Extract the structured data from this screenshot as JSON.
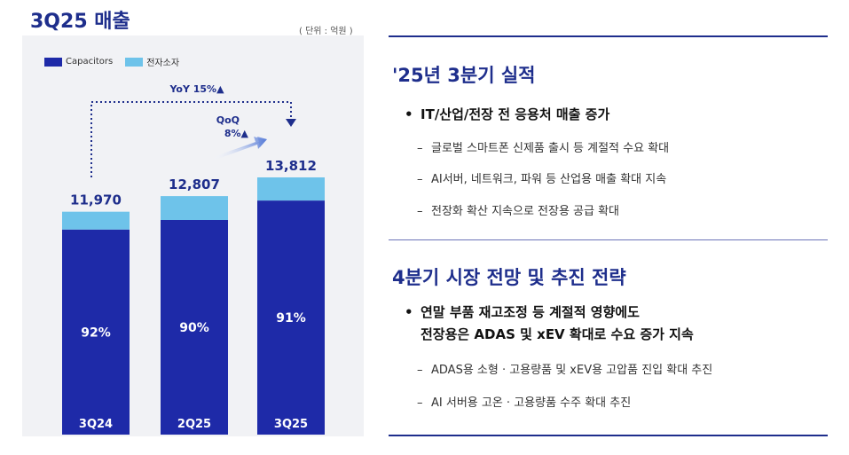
{
  "left": {
    "title": "3Q25 매출",
    "unit": "( 단위 : 억원 )",
    "legend": [
      {
        "label": "Capacitors",
        "color": "#1e2aa8"
      },
      {
        "label": "전자소자",
        "color": "#6ec3ea"
      }
    ],
    "yoy_label": "YoY 15%▲",
    "qoq_label_1": "QoQ",
    "qoq_label_2": "8%▲"
  },
  "chart_data": {
    "type": "bar",
    "stacked": true,
    "title": "3Q25 매출",
    "unit": "억원",
    "categories": [
      "3Q24",
      "2Q25",
      "3Q25"
    ],
    "totals": [
      11970,
      12807,
      13812
    ],
    "total_labels": [
      "11,970",
      "12,807",
      "13,812"
    ],
    "capacitor_share_pct": [
      92,
      90,
      91
    ],
    "share_labels": [
      "92%",
      "90%",
      "91%"
    ],
    "series": [
      {
        "name": "Capacitors",
        "color": "#1e2aa8",
        "values": [
          11012,
          11526,
          12569
        ]
      },
      {
        "name": "전자소자",
        "color": "#6ec3ea",
        "values": [
          958,
          1281,
          1243
        ]
      }
    ],
    "annotations": [
      "YoY 15%▲",
      "QoQ 8%▲"
    ]
  },
  "right": {
    "section1": {
      "title": "'25년 3분기 실적",
      "bullet": "IT/산업/전장 전 응용처 매출 증가",
      "subs": [
        "글로벌 스마트폰 신제품 출시 등 계절적 수요 확대",
        "AI서버, 네트워크, 파워 등 산업용 매출 확대 지속",
        "전장화 확산 지속으로 전장용 공급 확대"
      ]
    },
    "section2": {
      "title": "4분기 시장 전망 및 추진 전략",
      "bullet_line1": "연말 부품 재고조정 등 계절적 영향에도",
      "bullet_line2": "전장용은 ADAS 및 xEV 확대로 수요 증가 지속",
      "subs": [
        "ADAS용 소형 · 고용량품 및 xEV용 고압품 진입 확대 추진",
        "AI 서버용 고온 · 고용량품 수주 확대 추진"
      ]
    },
    "bullet_mark": "•",
    "dash_mark": "–"
  }
}
